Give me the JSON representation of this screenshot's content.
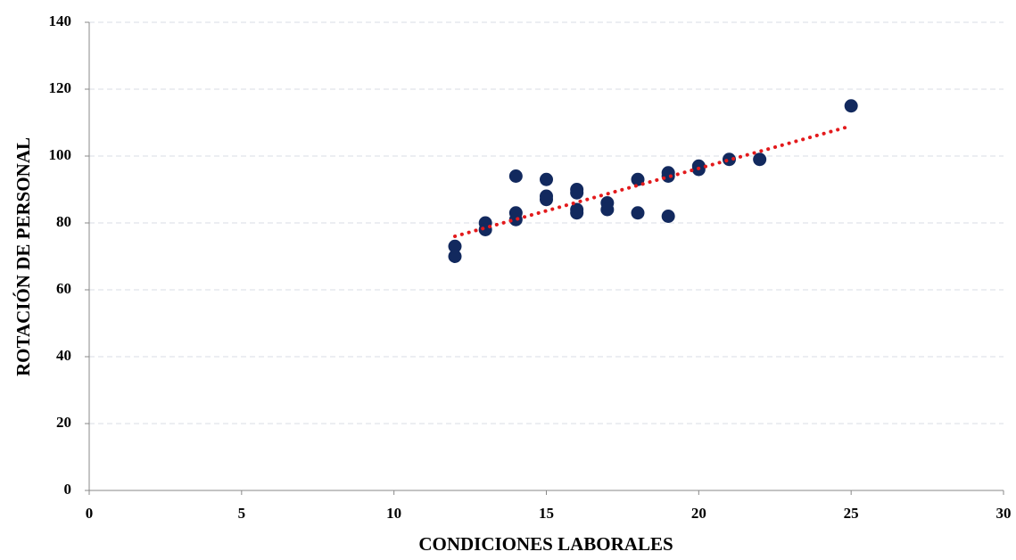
{
  "chart_data": {
    "type": "scatter",
    "x_label": "CONDICIONES LABORALES",
    "y_label": "ROTACIÓN DE PERSONAL",
    "x": [
      12,
      12,
      13,
      13,
      14,
      14,
      14,
      15,
      15,
      15,
      16,
      16,
      16,
      16,
      17,
      17,
      18,
      18,
      19,
      19,
      19,
      20,
      20,
      21,
      22,
      25
    ],
    "values": [
      73,
      70,
      80,
      78,
      94,
      83,
      81,
      93,
      88,
      87,
      90,
      89,
      84,
      83,
      86,
      84,
      93,
      83,
      95,
      94,
      82,
      97,
      96,
      99,
      99,
      115
    ],
    "color": "#12295e",
    "trendline": {
      "x": [
        12,
        25
      ],
      "values": [
        76,
        109
      ],
      "color": "#e31a1c"
    },
    "xlim": [
      0,
      30
    ],
    "xticks": [
      0,
      5,
      10,
      15,
      20,
      25,
      30
    ],
    "ylim": [
      0,
      140
    ],
    "yticks": [
      0,
      20,
      40,
      60,
      80,
      100,
      120,
      140
    ],
    "grid": true
  }
}
